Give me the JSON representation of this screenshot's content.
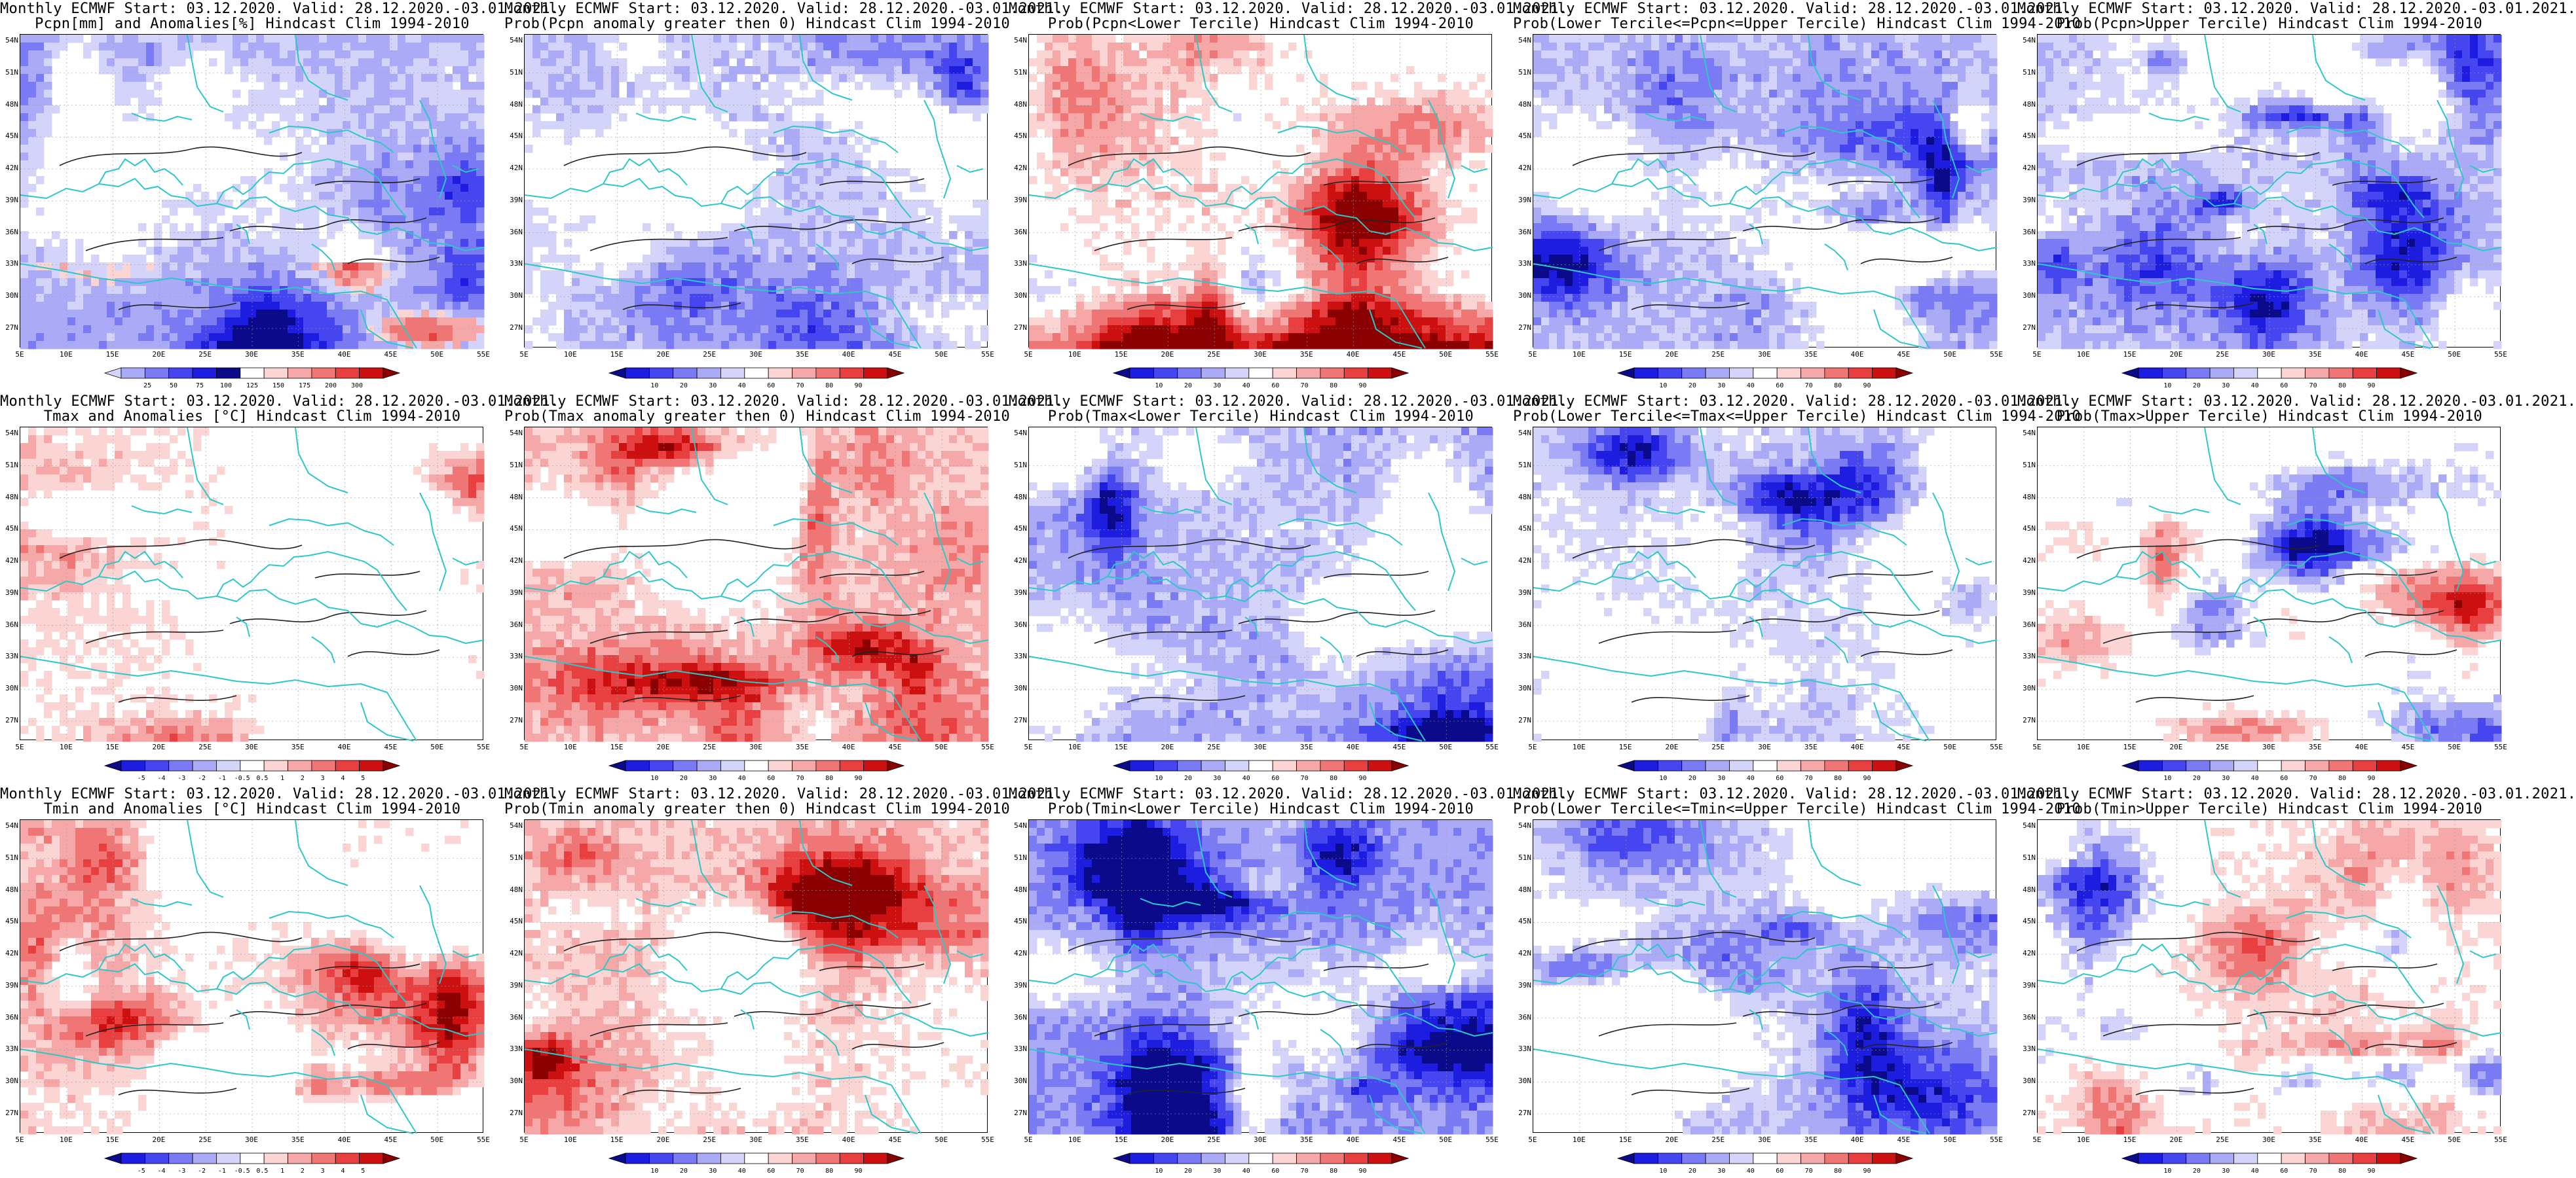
{
  "colors": {
    "coast": "#2ec7c7",
    "contour": "#222222",
    "blues": [
      "#0a0a8a",
      "#1d1de0",
      "#4646f0",
      "#7a7af5",
      "#aaaaf7",
      "#d4d4fb",
      "#ffffff"
    ],
    "reds": [
      "#ffffff",
      "#fbd4d4",
      "#f6a8a8",
      "#f07676",
      "#e84040",
      "#cc1010",
      "#8a0000"
    ]
  },
  "axes": {
    "lat_labels": [
      "54N",
      "51N",
      "48N",
      "45N",
      "42N",
      "39N",
      "36N",
      "33N",
      "30N",
      "27N"
    ],
    "lon_labels": [
      "5E",
      "10E",
      "15E",
      "20E",
      "25E",
      "30E",
      "35E",
      "40E",
      "45E",
      "50E",
      "55E"
    ]
  },
  "panels": [
    {
      "title_line1": "Monthly ECMWF Start: 03.12.2020. Valid: 28.12.2020.-03.01.2021.",
      "title_line2": "Pcpn[mm] and Anomalies[%] Hindcast Clim 1994-2010",
      "colorbar_ticks": [
        "25",
        "50",
        "75",
        "100",
        "125",
        "150",
        "175",
        "200",
        "300"
      ],
      "scheme": "anom",
      "bias": 0.0
    },
    {
      "title_line1": "Monthly ECMWF Start: 03.12.2020. Valid: 28.12.2020.-03.01.2021.",
      "title_line2": "Prob(Pcpn anomaly greater then 0) Hindcast Clim 1994-2010",
      "colorbar_ticks": [
        "10",
        "20",
        "30",
        "40",
        "60",
        "70",
        "80",
        "90"
      ],
      "scheme": "blue",
      "bias": 0.2
    },
    {
      "title_line1": "Monthly ECMWF Start: 03.12.2020. Valid: 28.12.2020.-03.01.2021.",
      "title_line2": "Prob(Pcpn<Lower Tercile) Hindcast Clim 1994-2010",
      "colorbar_ticks": [
        "10",
        "20",
        "30",
        "40",
        "60",
        "70",
        "80",
        "90"
      ],
      "scheme": "mixred",
      "bias": 0.0
    },
    {
      "title_line1": "Monthly ECMWF Start: 03.12.2020. Valid: 28.12.2020.-03.01.2021.",
      "title_line2": "Prob(Lower Tercile<=Pcpn<=Upper Tercile) Hindcast Clim 1994-2010",
      "colorbar_ticks": [
        "10",
        "20",
        "30",
        "40",
        "60",
        "70",
        "80",
        "90"
      ],
      "scheme": "blue",
      "bias": 0.25
    },
    {
      "title_line1": "Monthly ECMWF Start: 03.12.2020. Valid: 28.12.2020.-03.01.2021.",
      "title_line2": "Prob(Pcpn>Upper Tercile) Hindcast Clim 1994-2010",
      "colorbar_ticks": [
        "10",
        "20",
        "30",
        "40",
        "60",
        "70",
        "80",
        "90"
      ],
      "scheme": "blue",
      "bias": 0.2
    },
    {
      "title_line1": "Monthly ECMWF Start: 03.12.2020. Valid: 28.12.2020.-03.01.2021.",
      "title_line2": "Tmax and Anomalies [°C] Hindcast Clim 1994-2010",
      "colorbar_ticks": [
        "-5",
        "-4",
        "-3",
        "-2",
        "-1",
        "-0.5",
        "0.5",
        "1",
        "2",
        "3",
        "4",
        "5"
      ],
      "scheme": "red",
      "bias": -0.1
    },
    {
      "title_line1": "Monthly ECMWF Start: 03.12.2020. Valid: 28.12.2020.-03.01.2021.",
      "title_line2": "Prob(Tmax anomaly greater then 0) Hindcast Clim 1994-2010",
      "colorbar_ticks": [
        "10",
        "20",
        "30",
        "40",
        "60",
        "70",
        "80",
        "90"
      ],
      "scheme": "red",
      "bias": 0.15
    },
    {
      "title_line1": "Monthly ECMWF Start: 03.12.2020. Valid: 28.12.2020.-03.01.2021.",
      "title_line2": "Prob(Tmax<Lower Tercile) Hindcast Clim 1994-2010",
      "colorbar_ticks": [
        "10",
        "20",
        "30",
        "40",
        "60",
        "70",
        "80",
        "90"
      ],
      "scheme": "blue",
      "bias": 0.35
    },
    {
      "title_line1": "Monthly ECMWF Start: 03.12.2020. Valid: 28.12.2020.-03.01.2021.",
      "title_line2": "Prob(Lower Tercile<=Tmax<=Upper Tercile) Hindcast Clim 1994-2010",
      "colorbar_ticks": [
        "10",
        "20",
        "30",
        "40",
        "60",
        "70",
        "80",
        "90"
      ],
      "scheme": "blue",
      "bias": 0.05
    },
    {
      "title_line1": "Monthly ECMWF Start: 03.12.2020. Valid: 28.12.2020.-03.01.2021.",
      "title_line2": "Prob(Tmax>Upper Tercile) Hindcast Clim 1994-2010",
      "colorbar_ticks": [
        "10",
        "20",
        "30",
        "40",
        "60",
        "70",
        "80",
        "90"
      ],
      "scheme": "mixblue",
      "bias": -0.1
    },
    {
      "title_line1": "Monthly ECMWF Start: 03.12.2020. Valid: 28.12.2020.-03.01.2021.",
      "title_line2": "Tmin and Anomalies [°C] Hindcast Clim 1994-2010",
      "colorbar_ticks": [
        "-5",
        "-4",
        "-3",
        "-2",
        "-1",
        "-0.5",
        "0.5",
        "1",
        "2",
        "3",
        "4",
        "5"
      ],
      "scheme": "red",
      "bias": -0.15
    },
    {
      "title_line1": "Monthly ECMWF Start: 03.12.2020. Valid: 28.12.2020.-03.01.2021.",
      "title_line2": "Prob(Tmin anomaly greater then 0) Hindcast Clim 1994-2010",
      "colorbar_ticks": [
        "10",
        "20",
        "30",
        "40",
        "60",
        "70",
        "80",
        "90"
      ],
      "scheme": "red",
      "bias": 0.1
    },
    {
      "title_line1": "Monthly ECMWF Start: 03.12.2020. Valid: 28.12.2020.-03.01.2021.",
      "title_line2": "Prob(Tmin<Lower Tercile) Hindcast Clim 1994-2010",
      "colorbar_ticks": [
        "10",
        "20",
        "30",
        "40",
        "60",
        "70",
        "80",
        "90"
      ],
      "scheme": "blue",
      "bias": 0.4
    },
    {
      "title_line1": "Monthly ECMWF Start: 03.12.2020. Valid: 28.12.2020.-03.01.2021.",
      "title_line2": "Prob(Lower Tercile<=Tmin<=Upper Tercile) Hindcast Clim 1994-2010",
      "colorbar_ticks": [
        "10",
        "20",
        "30",
        "40",
        "60",
        "70",
        "80",
        "90"
      ],
      "scheme": "blue",
      "bias": 0.05
    },
    {
      "title_line1": "Monthly ECMWF Start: 03.12.2020. Valid: 28.12.2020.-03.01.2021.",
      "title_line2": "Prob(Tmin>Upper Tercile) Hindcast Clim 1994-2010",
      "colorbar_ticks": [
        "10",
        "20",
        "30",
        "40",
        "60",
        "70",
        "80",
        "90"
      ],
      "scheme": "mixblue",
      "bias": -0.2
    }
  ]
}
